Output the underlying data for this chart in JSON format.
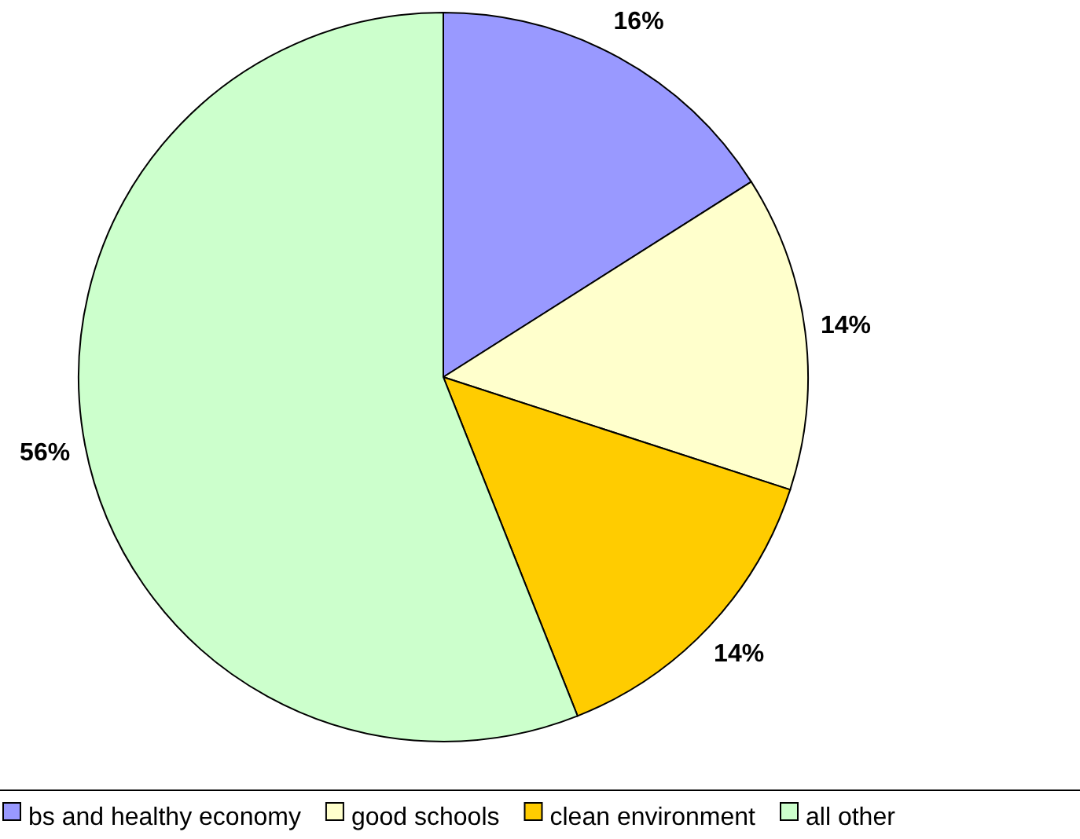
{
  "chart_data": {
    "type": "pie",
    "categories": [
      "bs and healthy economy",
      "good schools",
      "clean environment",
      "all other"
    ],
    "values": [
      16,
      14,
      14,
      56
    ],
    "colors": [
      "#9999ff",
      "#ffffcc",
      "#ffcc00",
      "#ccffcc"
    ],
    "value_labels": [
      "16%",
      "14%",
      "14%",
      "56%"
    ],
    "legend": "bottom"
  }
}
